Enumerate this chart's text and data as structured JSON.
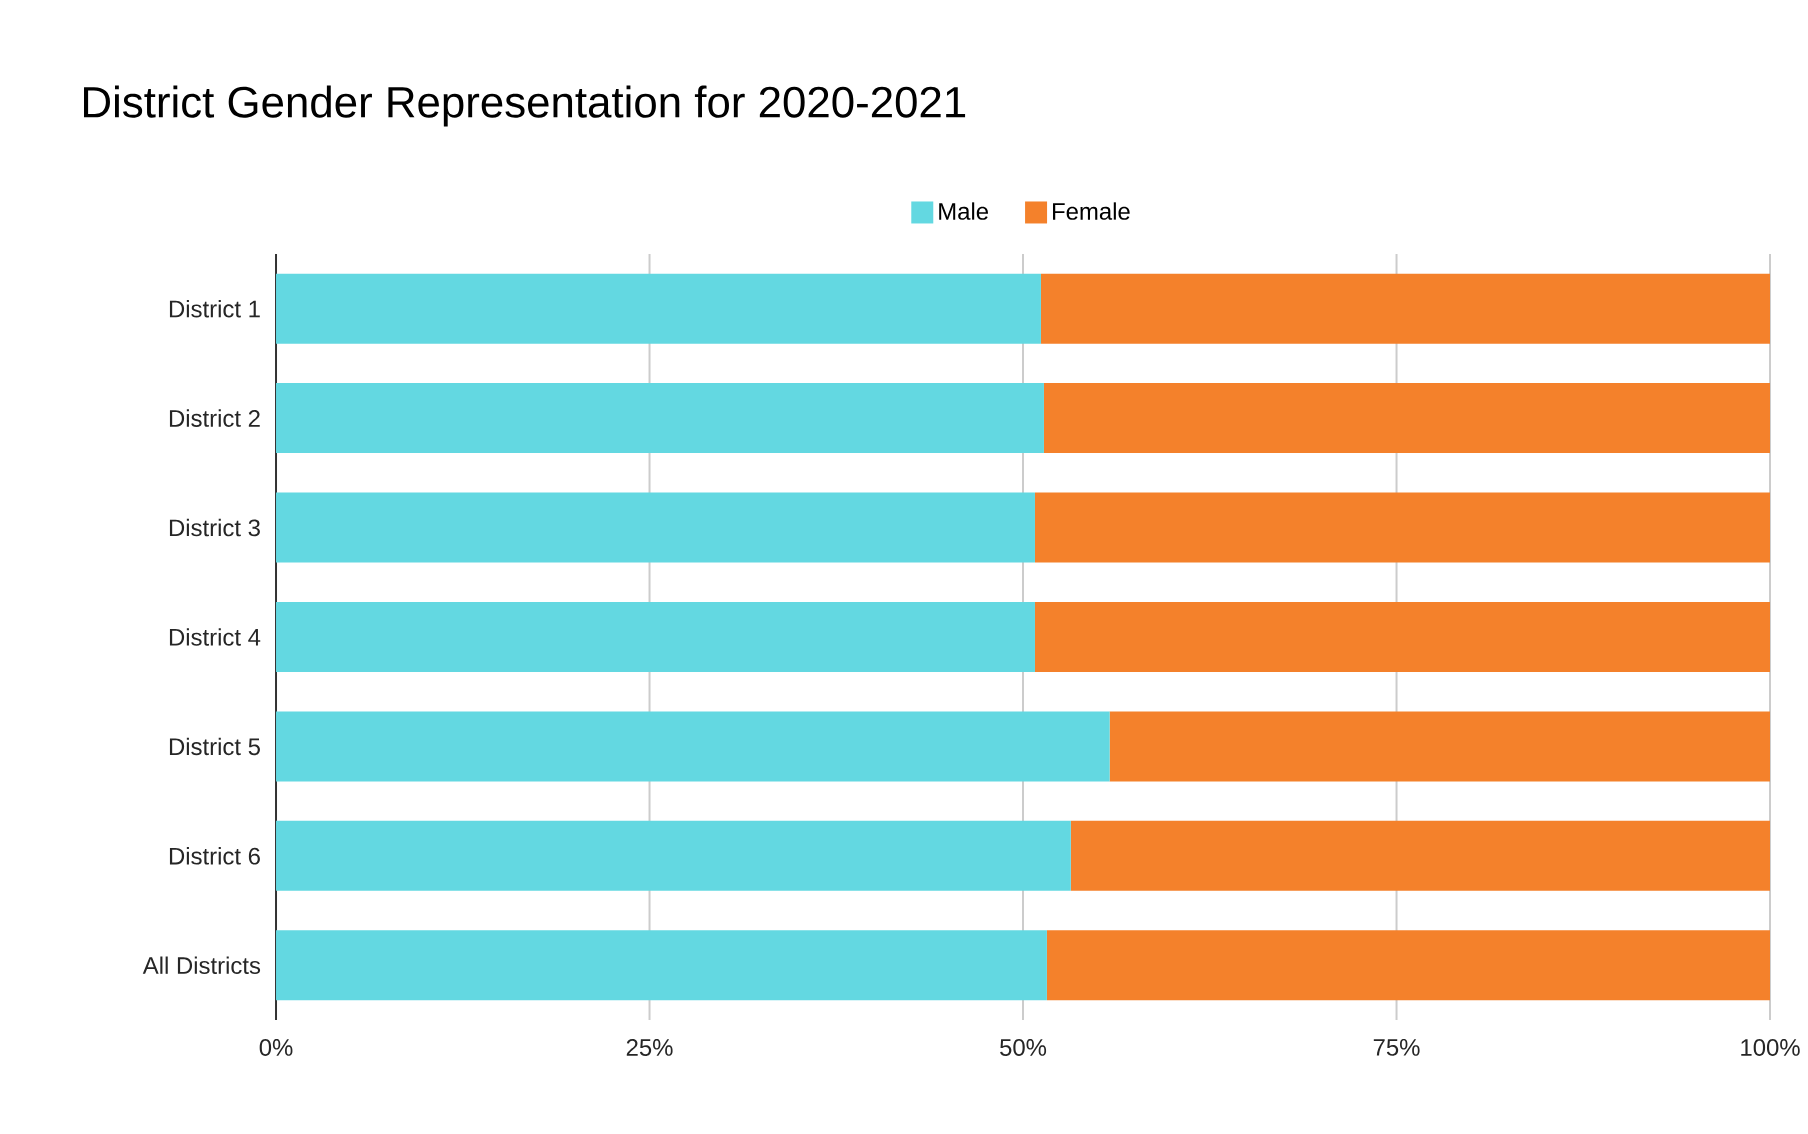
{
  "chart_data": {
    "type": "bar",
    "orientation": "horizontal",
    "stacked": true,
    "title": "District Gender Representation for 2020-2021",
    "categories": [
      "District 1",
      "District 2",
      "District 3",
      "District 4",
      "District 5",
      "District 6",
      "All Districts"
    ],
    "series": [
      {
        "name": "Male",
        "color": "#63d8e1",
        "values": [
          51.2,
          51.4,
          50.8,
          50.8,
          55.8,
          53.2,
          51.6
        ]
      },
      {
        "name": "Female",
        "color": "#f4812b",
        "values": [
          48.8,
          48.6,
          49.2,
          49.2,
          44.2,
          46.8,
          48.4
        ]
      }
    ],
    "xlim": [
      0,
      100
    ],
    "xticks": [
      {
        "value": 0,
        "label": "0%"
      },
      {
        "value": 25,
        "label": "25%"
      },
      {
        "value": 50,
        "label": "50%"
      },
      {
        "value": 75,
        "label": "75%"
      },
      {
        "value": 100,
        "label": "100%"
      }
    ],
    "grid": "x",
    "legend": "top"
  }
}
